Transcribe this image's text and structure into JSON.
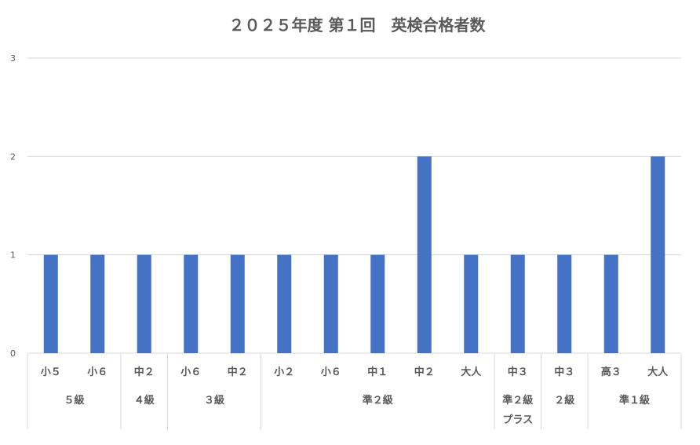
{
  "chart_data": {
    "type": "bar",
    "title": "２０２５年度 第１回　英検合格者数",
    "xlabel": "",
    "ylabel": "",
    "ylim": [
      0,
      3
    ],
    "yticks": [
      "0",
      "1",
      "2",
      "3"
    ],
    "grid": true,
    "legend": "none",
    "categories": [
      "小５",
      "小６",
      "中２",
      "小６",
      "中２",
      "小２",
      "小６",
      "中１",
      "中２",
      "大人",
      "中３",
      "中３",
      "高３",
      "大人"
    ],
    "values": [
      1,
      1,
      1,
      1,
      1,
      1,
      1,
      1,
      2,
      1,
      1,
      1,
      1,
      2
    ],
    "groups": [
      {
        "label": [
          "５級"
        ],
        "span": 2
      },
      {
        "label": [
          "４級"
        ],
        "span": 1
      },
      {
        "label": [
          "３級"
        ],
        "span": 2
      },
      {
        "label": [
          "準２級"
        ],
        "span": 5
      },
      {
        "label": [
          "準２級",
          "プラス"
        ],
        "span": 1
      },
      {
        "label": [
          "２級"
        ],
        "span": 1
      },
      {
        "label": [
          "準１級"
        ],
        "span": 2
      }
    ],
    "colors": {
      "bar": "#4472C4",
      "grid": "#D9D9D9",
      "text": "#595959",
      "axis": "#D9D9D9"
    }
  }
}
